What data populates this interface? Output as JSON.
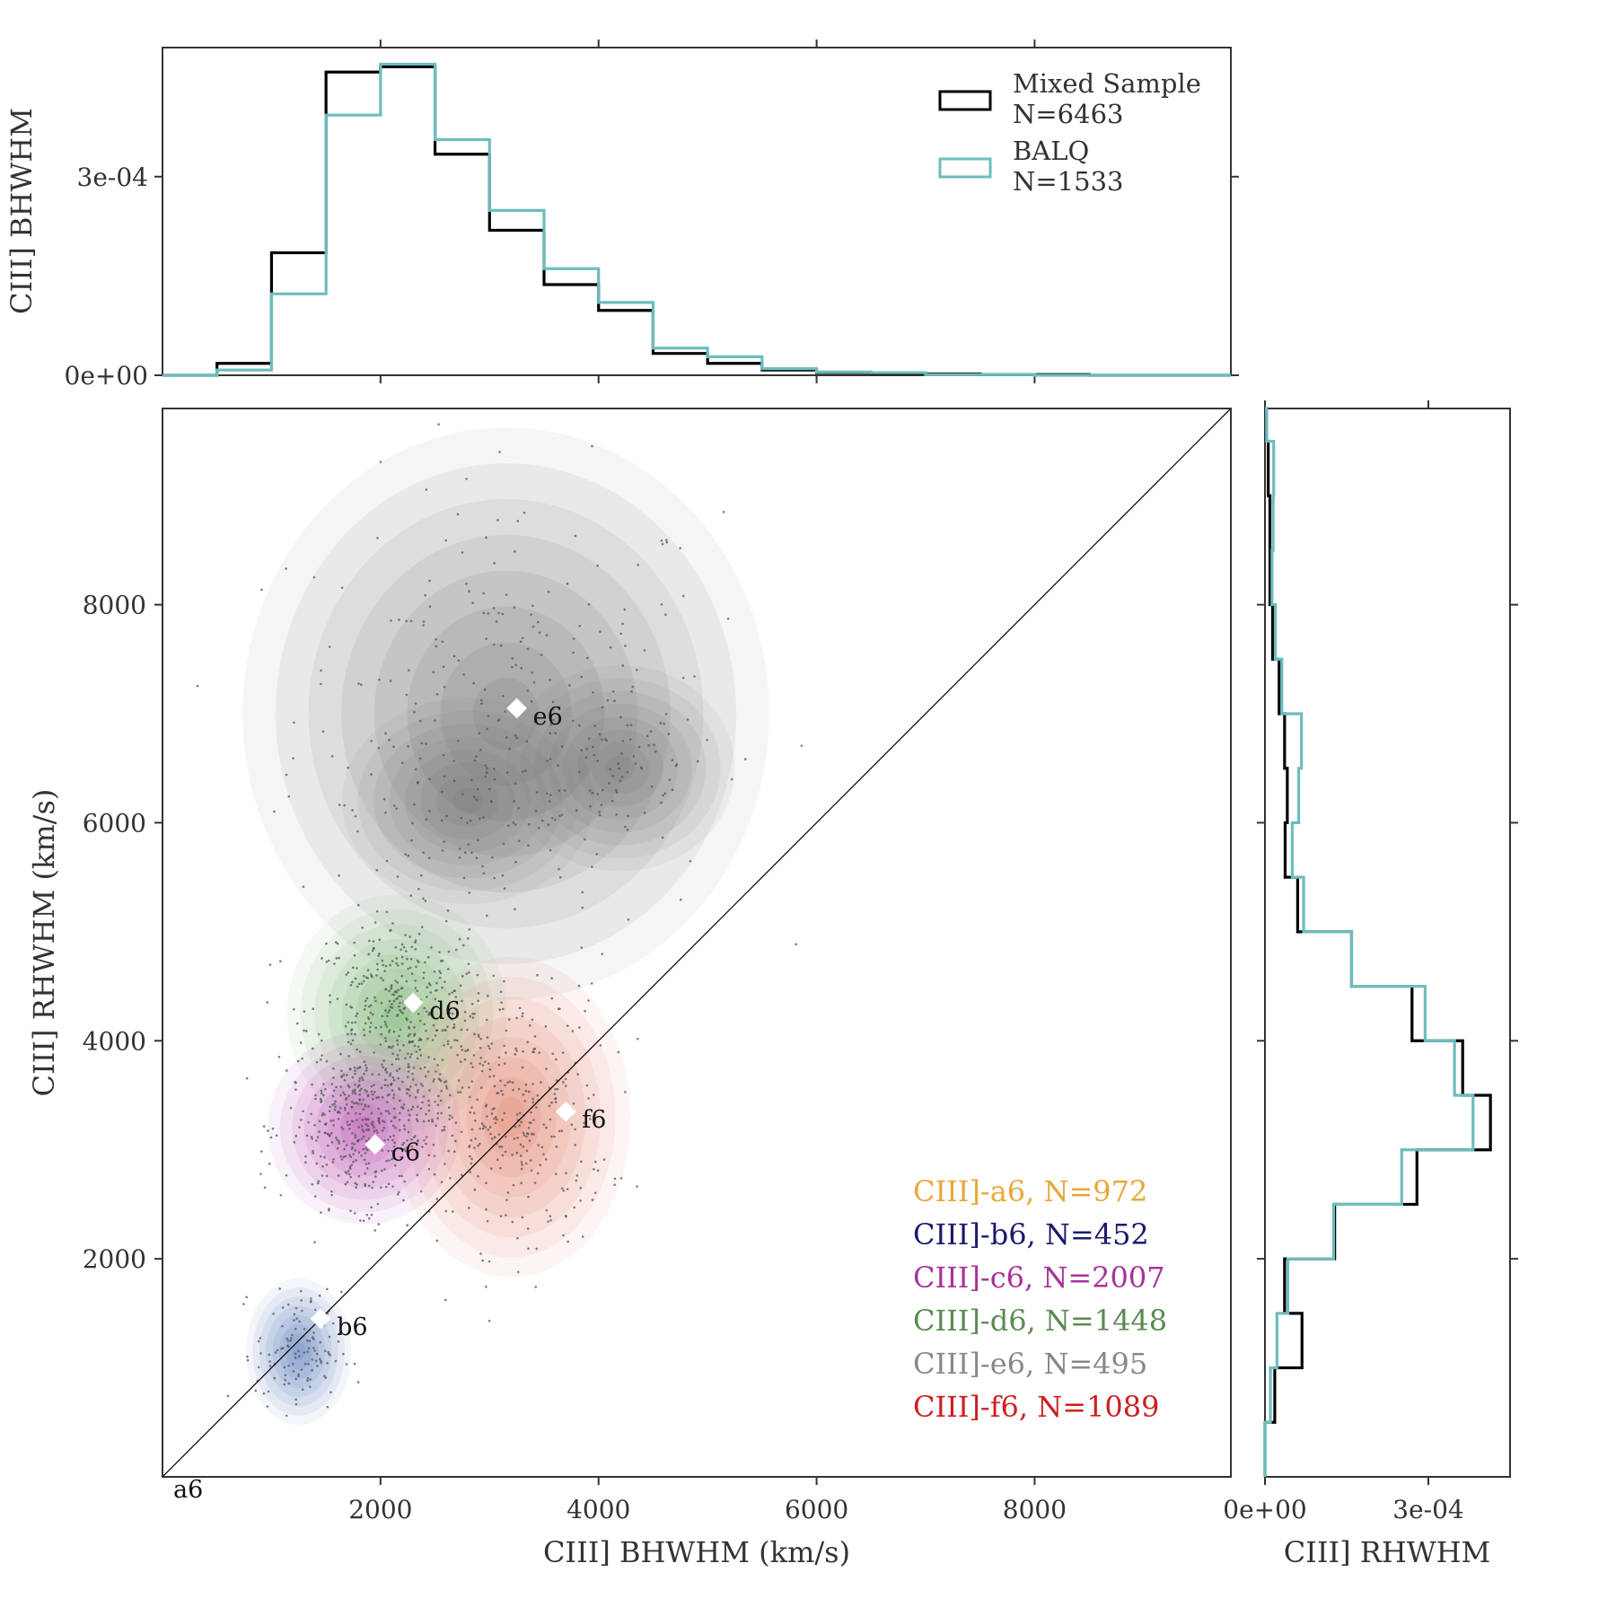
{
  "chart_data": [
    {
      "id": "top-histogram",
      "type": "histogram",
      "ylabel": "CIII] BHWHM",
      "yticks": [
        {
          "value": 0,
          "label": "0e+00"
        },
        {
          "value": 0.0003,
          "label": "3e-04"
        }
      ],
      "xlim": [
        0,
        9800
      ],
      "ylim": [
        0,
        0.000495
      ],
      "bin_edges": [
        0,
        500,
        1000,
        1500,
        2000,
        2500,
        3000,
        3500,
        4000,
        4500,
        5000,
        5500,
        6000,
        6500,
        7000,
        7500,
        8000,
        8500,
        9000,
        9500,
        9800
      ],
      "legend": [
        {
          "name": "Mixed Sample",
          "n_label": "N=6463",
          "color": "#000000"
        },
        {
          "name": "BALQ",
          "n_label": "N=1533",
          "color": "#6dbdbd"
        }
      ],
      "series": [
        {
          "name": "Mixed Sample",
          "color": "#000000",
          "values": [
            0.0,
            1.8e-05,
            0.000185,
            0.000458,
            0.000466,
            0.000334,
            0.000219,
            0.000137,
            9.8e-05,
            3.3e-05,
            1.8e-05,
            8e-06,
            4e-06,
            3e-06,
            2e-06,
            1e-06,
            1e-06,
            0.0,
            0.0,
            0.0
          ]
        },
        {
          "name": "BALQ",
          "color": "#6dbdbd",
          "values": [
            0.0,
            8e-06,
            0.000123,
            0.000393,
            0.00047,
            0.000356,
            0.000249,
            0.000161,
            0.00011,
            4.1e-05,
            2.8e-05,
            1e-05,
            5e-06,
            4e-06,
            1e-06,
            1e-06,
            0.0,
            0.0,
            0.0,
            0.0
          ]
        }
      ]
    },
    {
      "id": "main-scatter",
      "type": "scatter",
      "xlabel": "CIII] BHWHM (km/s)",
      "ylabel": "CIII] RHWHM (km/s)",
      "xlim": [
        0,
        9800
      ],
      "ylim": [
        0,
        9800
      ],
      "xticks": [
        2000,
        4000,
        6000,
        8000
      ],
      "yticks": [
        2000,
        4000,
        6000,
        8000
      ],
      "corner_label": "a6",
      "diagonal": true,
      "centroids": [
        {
          "label": "b6",
          "x": 1450,
          "y": 1450
        },
        {
          "label": "c6",
          "x": 1950,
          "y": 3050
        },
        {
          "label": "d6",
          "x": 2300,
          "y": 4350
        },
        {
          "label": "e6",
          "x": 3250,
          "y": 7050
        },
        {
          "label": "f6",
          "x": 3700,
          "y": 3350
        }
      ],
      "groups": [
        {
          "label": "CIII]-a6, N=972",
          "color": "#e8a838"
        },
        {
          "label": "CIII]-b6, N=452",
          "color": "#1a1a6e"
        },
        {
          "label": "CIII]-c6, N=2007",
          "color": "#a8329a"
        },
        {
          "label": "CIII]-d6, N=1448",
          "color": "#5a8a50"
        },
        {
          "label": "CIII]-e6, N=495",
          "color": "#888888"
        },
        {
          "label": "CIII]-f6, N=1089",
          "color": "#cc1f1f"
        }
      ],
      "density_blobs": [
        {
          "group": "e6",
          "color": "#6e6e6e",
          "cx": 3150,
          "cy": 7000,
          "sx": 1150,
          "sy": 1250
        },
        {
          "group": "e6",
          "color": "#6e6e6e",
          "cx": 2800,
          "cy": 6200,
          "sx": 550,
          "sy": 450
        },
        {
          "group": "e6",
          "color": "#6e6e6e",
          "cx": 4200,
          "cy": 6500,
          "sx": 500,
          "sy": 450
        },
        {
          "group": "d6",
          "color": "#6aa860",
          "cx": 2150,
          "cy": 4250,
          "sx": 480,
          "sy": 520
        },
        {
          "group": "f6",
          "color": "#e0735a",
          "cx": 3200,
          "cy": 3300,
          "sx": 520,
          "sy": 700
        },
        {
          "group": "c6",
          "color": "#b13aa8",
          "cx": 1850,
          "cy": 3200,
          "sx": 420,
          "sy": 420
        },
        {
          "group": "b6",
          "color": "#4b72b8",
          "cx": 1250,
          "cy": 1150,
          "sx": 230,
          "sy": 320
        }
      ]
    },
    {
      "id": "right-histogram",
      "type": "histogram",
      "orientation": "horizontal",
      "xlabel": "CIII] RHWHM",
      "xticks": [
        {
          "value": 0,
          "label": "0e+00"
        },
        {
          "value": 0.0003,
          "label": "3e-04"
        }
      ],
      "xlim": [
        0,
        0.00045
      ],
      "ylim": [
        0,
        9800
      ],
      "bin_edges": [
        0,
        500,
        1000,
        1500,
        2000,
        2500,
        3000,
        3500,
        4000,
        4500,
        5000,
        5500,
        6000,
        6500,
        7000,
        7500,
        8000,
        8500,
        9000,
        9500,
        9800
      ],
      "series": [
        {
          "name": "Mixed Sample",
          "color": "#000000",
          "values": [
            0.0,
            1.8e-05,
            6.8e-05,
            3.6e-05,
            0.000128,
            0.000279,
            0.000414,
            0.000363,
            0.00027,
            0.000159,
            6e-05,
            3.7e-05,
            4.1e-05,
            3.6e-05,
            2.6e-05,
            1.4e-05,
            9e-06,
            9e-06,
            6e-06,
            3e-06
          ]
        },
        {
          "name": "BALQ",
          "color": "#6dbdbd",
          "values": [
            0.0,
            1e-05,
            2.2e-05,
            4.2e-05,
            0.000126,
            0.000251,
            0.000382,
            0.000348,
            0.000294,
            0.000159,
            7.1e-05,
            5e-05,
            6.2e-05,
            6.7e-05,
            3.1e-05,
            1.9e-05,
            1.3e-05,
            1.5e-05,
            1.6e-05,
            3e-06
          ]
        }
      ]
    }
  ]
}
